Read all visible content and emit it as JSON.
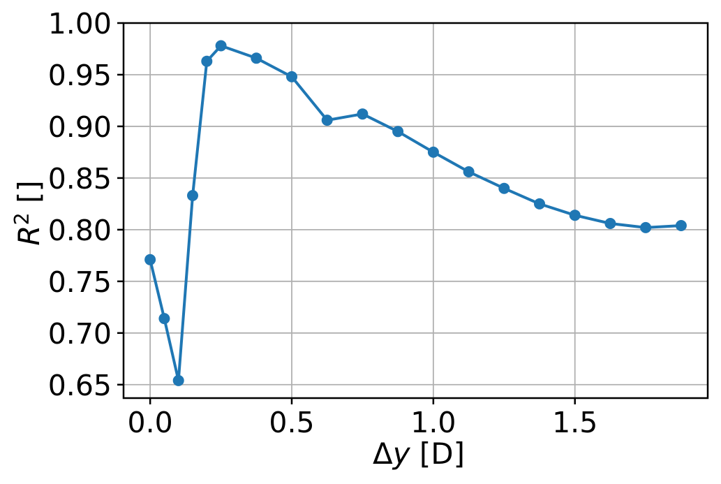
{
  "chart_data": {
    "type": "line",
    "xlabel": "Δy [D]",
    "ylabel": "R² []",
    "xlabel_parts": {
      "prefix": "Δ",
      "symbol": "y",
      "unit": " [D]"
    },
    "ylabel_parts": {
      "symbol": "R",
      "superscript": "2",
      "unit": " []"
    },
    "x": [
      0.0,
      0.05,
      0.1,
      0.15,
      0.2,
      0.25,
      0.375,
      0.5,
      0.625,
      0.75,
      0.875,
      1.0,
      1.125,
      1.25,
      1.375,
      1.5,
      1.625,
      1.75,
      1.875
    ],
    "y": [
      0.771,
      0.714,
      0.654,
      0.833,
      0.963,
      0.978,
      0.966,
      0.948,
      0.906,
      0.912,
      0.895,
      0.875,
      0.856,
      0.84,
      0.825,
      0.814,
      0.806,
      0.802,
      0.804
    ],
    "x_ticks": {
      "values": [
        0.0,
        0.5,
        1.0,
        1.5
      ],
      "labels": [
        "0.0",
        "0.5",
        "1.0",
        "1.5"
      ]
    },
    "y_ticks": {
      "values": [
        1.0,
        0.95,
        0.9,
        0.85,
        0.8,
        0.75,
        0.7,
        0.65
      ],
      "labels": [
        "1.00",
        "0.95",
        "0.90",
        "0.85",
        "0.80",
        "0.75",
        "0.70",
        "0.65"
      ]
    },
    "xlim": [
      -0.094,
      1.969
    ],
    "ylim": [
      0.637,
      1.0
    ],
    "grid": true,
    "legend": "none",
    "style": {
      "line_color": "#1f77b4",
      "marker": "circle",
      "marker_radius": 8,
      "line_width": 4,
      "grid_color": "#b0b0b0",
      "grid_width": 1.8,
      "spine_color": "#000000",
      "spine_width": 2.5,
      "tick_length": 9,
      "tick_width": 2.5,
      "background": "#ffffff"
    }
  }
}
